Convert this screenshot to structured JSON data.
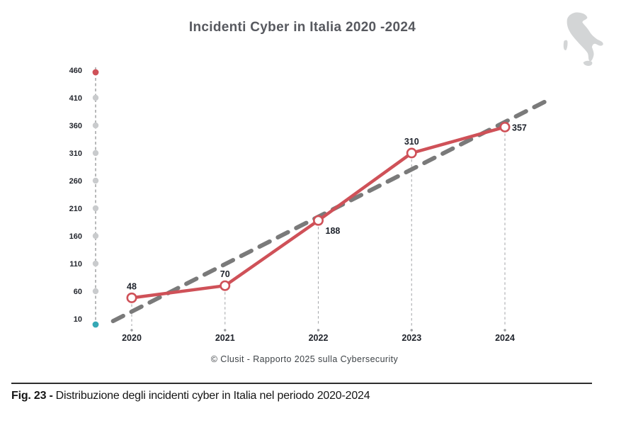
{
  "page": {
    "title": "Incidenti Cyber in Italia 2020 -2024",
    "source_caption": "© Clusit - Rapporto 2025 sulla Cybersecurity",
    "figure_caption": {
      "label": "Fig. 23 -",
      "text": "Distribuzione degli incidenti cyber in Italia nel periodo 2020-2024"
    }
  },
  "icons": {
    "italy_map": "italy-map-icon"
  },
  "colors": {
    "series_red": "#cf5158",
    "trend_gray": "#7a7a7a",
    "axis_line_gray": "#a0a2a4",
    "dropline_gray": "#a8aaad",
    "axis_dot_gray": "#c9cbcd",
    "axis_top_dot_red": "#cf5158",
    "axis_bottom_dot_teal": "#35a8b5",
    "label_dark": "#20242c",
    "title_gray": "#57595f",
    "italy_gray": "#d3d5d6"
  },
  "chart_data": {
    "type": "line",
    "title": "Incidenti Cyber in Italia 2020 -2024",
    "categories": [
      "2020",
      "2021",
      "2022",
      "2023",
      "2024"
    ],
    "series": [
      {
        "name": "Incidenti cyber in Italia",
        "values": [
          48,
          70,
          188,
          310,
          357
        ],
        "color": "#cf5158",
        "marker": "open-circle"
      }
    ],
    "data_labels": [
      "48",
      "70",
      "188",
      "310",
      "357"
    ],
    "label_positions": [
      "above",
      "above",
      "below-right",
      "above",
      "right"
    ],
    "trendline": {
      "style": "dashed",
      "color": "#7a7a7a",
      "start": {
        "x_index": -0.2,
        "value": 6
      },
      "end": {
        "x_index": 4.5,
        "value": 409
      }
    },
    "y_axis": {
      "ticks": [
        460,
        410,
        360,
        310,
        260,
        210,
        160,
        110,
        60,
        10
      ],
      "min": 10,
      "max": 460,
      "grid": false,
      "style": "dashed-dot-axis"
    },
    "x_axis": {
      "labels": [
        "2020",
        "2021",
        "2022",
        "2023",
        "2024"
      ],
      "droplines": "dashed"
    },
    "legend": "none",
    "source": "© Clusit - Rapporto 2025 sulla Cybersecurity"
  }
}
